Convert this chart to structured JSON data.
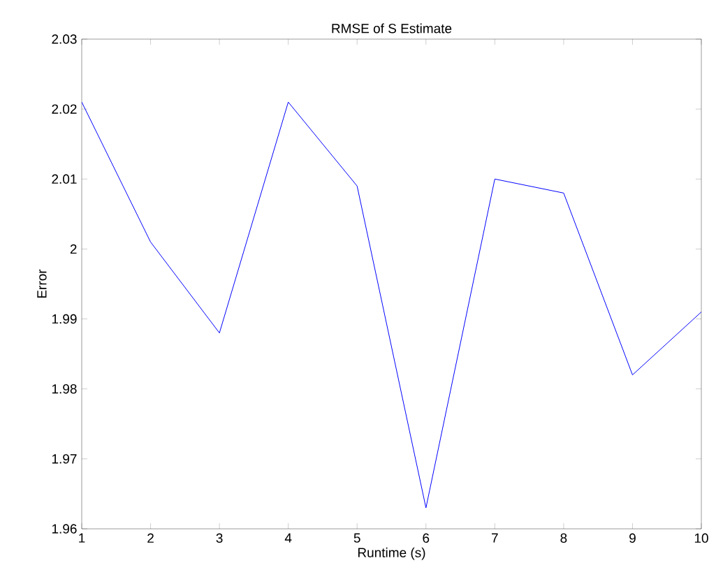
{
  "chart_data": {
    "type": "line",
    "title": "RMSE of S Estimate",
    "xlabel": "Runtime (s)",
    "ylabel": "Error",
    "x": [
      1,
      2,
      3,
      4,
      5,
      6,
      7,
      8,
      9,
      10
    ],
    "values": [
      2.021,
      2.001,
      1.988,
      2.021,
      2.009,
      1.963,
      2.01,
      2.008,
      1.982,
      1.991
    ],
    "color": "#0000ff",
    "xlim": [
      1,
      10
    ],
    "ylim": [
      1.96,
      2.03
    ],
    "xticks": [
      1,
      2,
      3,
      4,
      5,
      6,
      7,
      8,
      9,
      10
    ],
    "yticks": [
      1.96,
      1.97,
      1.98,
      1.99,
      2,
      2.01,
      2.02,
      2.03
    ]
  }
}
